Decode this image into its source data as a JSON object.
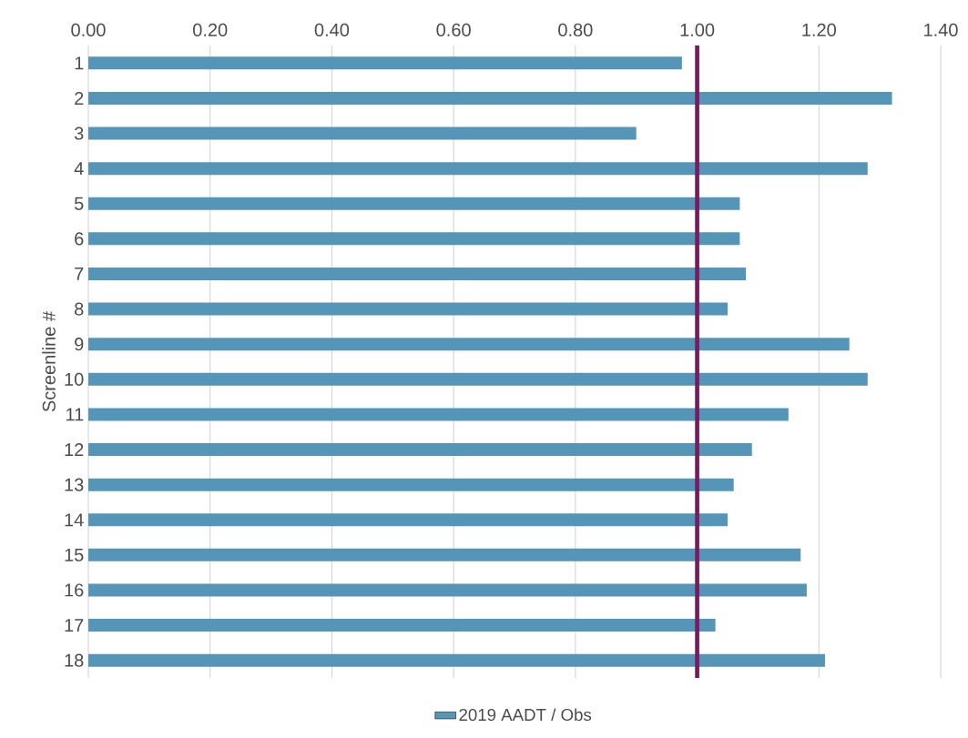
{
  "chart_data": {
    "type": "bar",
    "orientation": "horizontal",
    "ylabel": "Screenline #",
    "categories": [
      "1",
      "2",
      "3",
      "4",
      "5",
      "6",
      "7",
      "8",
      "9",
      "10",
      "11",
      "12",
      "13",
      "14",
      "15",
      "16",
      "17",
      "18"
    ],
    "series": [
      {
        "name": "2019 AADT / Obs",
        "color": "#5596b8",
        "values": [
          0.975,
          1.32,
          0.9,
          1.28,
          1.07,
          1.07,
          1.08,
          1.05,
          1.25,
          1.28,
          1.15,
          1.09,
          1.06,
          1.05,
          1.17,
          1.18,
          1.03,
          1.21
        ]
      }
    ],
    "xlim": [
      0,
      1.4
    ],
    "xticks": [
      {
        "value": 0,
        "label": "0.00"
      },
      {
        "value": 0.2,
        "label": "0.20"
      },
      {
        "value": 0.4,
        "label": "0.40"
      },
      {
        "value": 0.6,
        "label": "0.60"
      },
      {
        "value": 0.8,
        "label": "0.80"
      },
      {
        "value": 1.0,
        "label": "1.00"
      },
      {
        "value": 1.2,
        "label": "1.20"
      },
      {
        "value": 1.4,
        "label": "1.40"
      }
    ],
    "ref_lines": [
      {
        "axis": "x",
        "value": 1.0,
        "color": "#7a1a5e"
      }
    ],
    "grid": "x",
    "legend": "bottom"
  }
}
